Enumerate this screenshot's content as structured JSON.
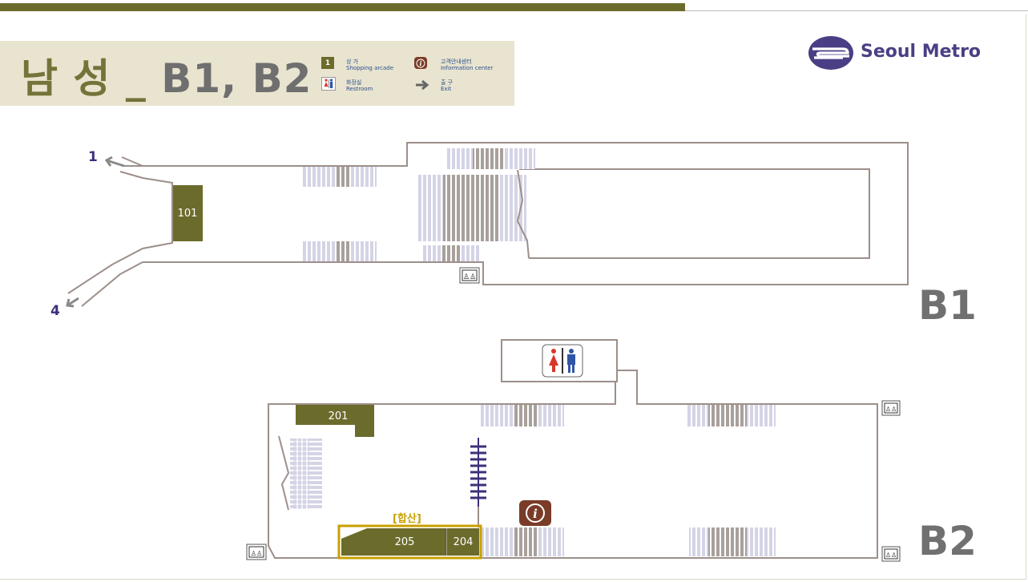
{
  "header": {
    "title_station": "남 성",
    "title_separator": "_",
    "title_floors": "B1, B2"
  },
  "legend": {
    "shop": {
      "badge": "1",
      "ko": "상 가",
      "en": "Shopping arcade"
    },
    "info": {
      "ko": "고객안내센터",
      "en": "Information center"
    },
    "restroom": {
      "ko": "화장실",
      "en": "Restroom"
    },
    "exit": {
      "ko": "출 구",
      "en": "Exit"
    }
  },
  "logo": {
    "text": "Seoul Metro"
  },
  "floors": {
    "b1": {
      "label": "B1",
      "exits": [
        "1",
        "4"
      ],
      "stores": [
        "101"
      ]
    },
    "b2": {
      "label": "B2",
      "stores": [
        "201",
        "205",
        "204"
      ],
      "transfer_note": "[합산]"
    }
  },
  "colors": {
    "store": "#6b6b2c",
    "wall": "#9d8f8a",
    "stairs_light": "#d4d4e6",
    "stairs_dark": "#a8a09b",
    "accent_purple": "#3e2f7a",
    "highlight_gold": "#c8a000",
    "info_brown": "#7a3c28"
  },
  "icons": [
    "shop-icon",
    "info-icon",
    "restroom-icon",
    "exit-arrow-icon",
    "elevator-icon",
    "seoul-metro-logo-icon"
  ]
}
